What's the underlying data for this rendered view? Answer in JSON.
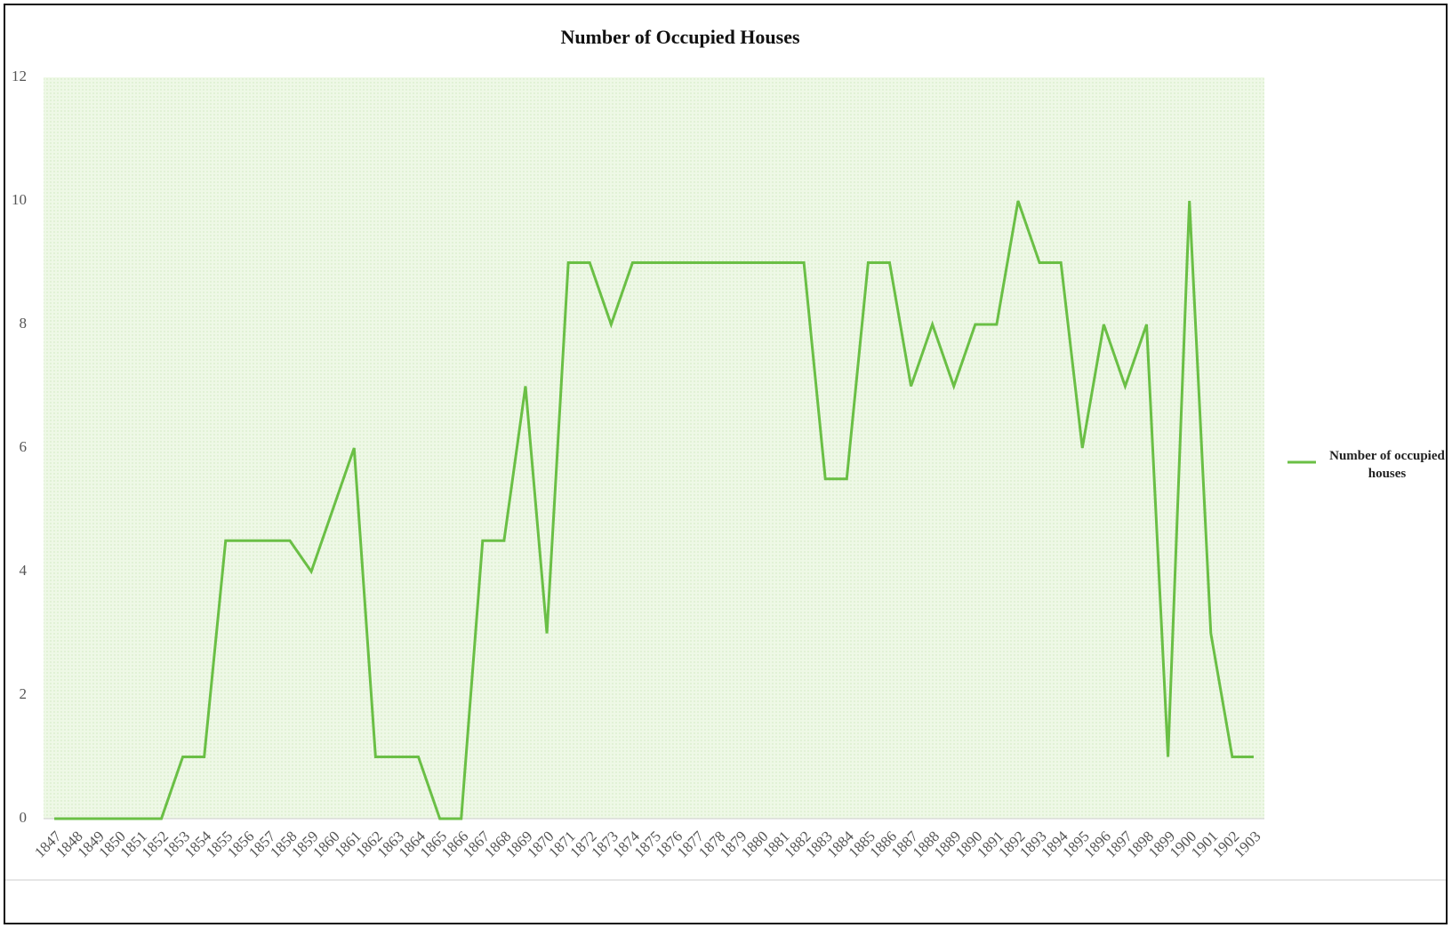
{
  "chart_data": {
    "type": "line",
    "title": "Number of Occupied Houses",
    "categories": [
      "1847",
      "1848",
      "1849",
      "1850",
      "1851",
      "1852",
      "1853",
      "1854",
      "1855",
      "1856",
      "1857",
      "1858",
      "1859",
      "1860",
      "1861",
      "1862",
      "1863",
      "1864",
      "1865",
      "1866",
      "1867",
      "1868",
      "1869",
      "1870",
      "1871",
      "1872",
      "1873",
      "1874",
      "1875",
      "1876",
      "1877",
      "1878",
      "1879",
      "1880",
      "1881",
      "1882",
      "1883",
      "1884",
      "1885",
      "1886",
      "1887",
      "1888",
      "1889",
      "1890",
      "1891",
      "1892",
      "1893",
      "1894",
      "1895",
      "1896",
      "1897",
      "1898",
      "1899",
      "1900",
      "1901",
      "1902",
      "1903"
    ],
    "series": [
      {
        "name": "Number of occupied houses",
        "color": "#6abf45",
        "values": [
          0,
          0,
          0,
          0,
          0,
          0,
          1,
          1,
          4.5,
          4.5,
          4.5,
          4.5,
          4,
          5,
          6,
          1,
          1,
          1,
          0,
          0,
          4.5,
          4.5,
          7,
          3,
          9,
          9,
          8,
          9,
          9,
          9,
          9,
          9,
          9,
          9,
          9,
          9,
          5.5,
          5.5,
          9,
          9,
          7,
          8,
          7,
          8,
          8,
          10,
          9,
          9,
          6,
          8,
          7,
          8,
          1,
          10,
          3,
          1,
          1
        ]
      }
    ],
    "ylim": [
      0,
      12
    ],
    "yticks": [
      0,
      2,
      4,
      6,
      8,
      10,
      12
    ],
    "grid": false,
    "legend": "right"
  }
}
